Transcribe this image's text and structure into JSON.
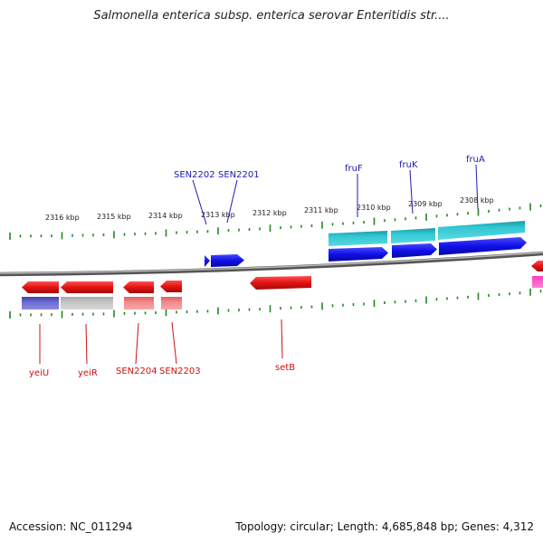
{
  "title": "Salmonella enterica subsp. enterica serovar Enteritidis str....",
  "footer": {
    "accession": "Accession: NC_011294",
    "topology": "Topology: circular; Length: 4,685,848 bp; Genes: 4,312"
  },
  "colors": {
    "backbone": "#7f7f7f",
    "tick": "#228822",
    "forward_gene": "#1010e8",
    "forward_cds": "#20b8c8",
    "reverse_gene": "#e41212",
    "forward_label": "#1b1bb0",
    "reverse_label": "#cc1111"
  },
  "scale_labels": [
    "2316 kbp",
    "2315 kbp",
    "2314 kbp",
    "2313 kbp",
    "2312 kbp",
    "2311 kbp",
    "2310 kbp",
    "2309 kbp",
    "2308 kbp"
  ],
  "forward_gene_labels": [
    "SEN2202",
    "SEN2201",
    "fruF",
    "fruK",
    "fruA"
  ],
  "reverse_gene_labels": [
    "yeiU",
    "yeiR",
    "SEN2204",
    "SEN2203",
    "setB"
  ]
}
